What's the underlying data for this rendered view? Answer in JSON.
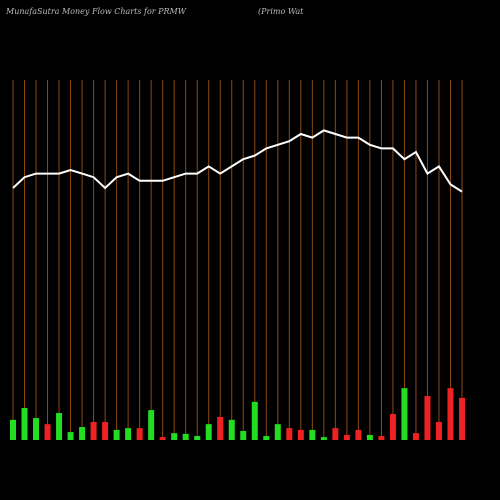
{
  "chart_data": {
    "type": "money-flow",
    "title": "MunafaSutra  Money Flow  Charts for PRMW",
    "subtitle": "(Primo  Wat",
    "categories": [
      null,
      null,
      null,
      null,
      null,
      null,
      null,
      null,
      null,
      null,
      null,
      null,
      null,
      null,
      null,
      null,
      null,
      null,
      null,
      null,
      null,
      null,
      null,
      null,
      null,
      null,
      null,
      null,
      null,
      null,
      null,
      null,
      null,
      null,
      null,
      null,
      null,
      null,
      null,
      null
    ],
    "ylim": [
      0,
      100
    ],
    "grid_color": "#8b4a12",
    "bars": {
      "values": [
        5.6,
        8.9,
        6.1,
        4.4,
        7.5,
        2.2,
        3.6,
        5,
        5,
        2.8,
        3.3,
        3.3,
        8.3,
        0.8,
        1.9,
        1.7,
        1.1,
        4.4,
        6.4,
        5.6,
        2.5,
        10.6,
        1.1,
        4.4,
        3.3,
        2.8,
        2.8,
        0.8,
        3.3,
        1.4,
        2.8,
        1.4,
        1.1,
        7.2,
        14.4,
        1.9,
        12.2,
        5,
        14.4,
        11.7
      ],
      "colors": [
        "#22dd22",
        "#22dd22",
        "#22dd22",
        "#ee2222",
        "#22dd22",
        "#22dd22",
        "#22dd22",
        "#ee2222",
        "#ee2222",
        "#22dd22",
        "#22dd22",
        "#ee2222",
        "#22dd22",
        "#ee2222",
        "#22dd22",
        "#22dd22",
        "#22dd22",
        "#22dd22",
        "#ee2222",
        "#22dd22",
        "#22dd22",
        "#22dd22",
        "#22dd22",
        "#22dd22",
        "#ee2222",
        "#ee2222",
        "#22dd22",
        "#22dd22",
        "#ee2222",
        "#ee2222",
        "#ee2222",
        "#22dd22",
        "#ee2222",
        "#ee2222",
        "#22dd22",
        "#ee2222",
        "#ee2222",
        "#ee2222",
        "#ee2222",
        "#ee2222"
      ]
    },
    "line": {
      "color": "#ffffff",
      "values": [
        70,
        73,
        74,
        74,
        74,
        75,
        74,
        73,
        70,
        73,
        74,
        72,
        72,
        72,
        73,
        74,
        74,
        76,
        74,
        76,
        78,
        79,
        81,
        82,
        83,
        85,
        84,
        86,
        85,
        84,
        84,
        82,
        81,
        81,
        78,
        80,
        74,
        76,
        71,
        69
      ]
    }
  }
}
